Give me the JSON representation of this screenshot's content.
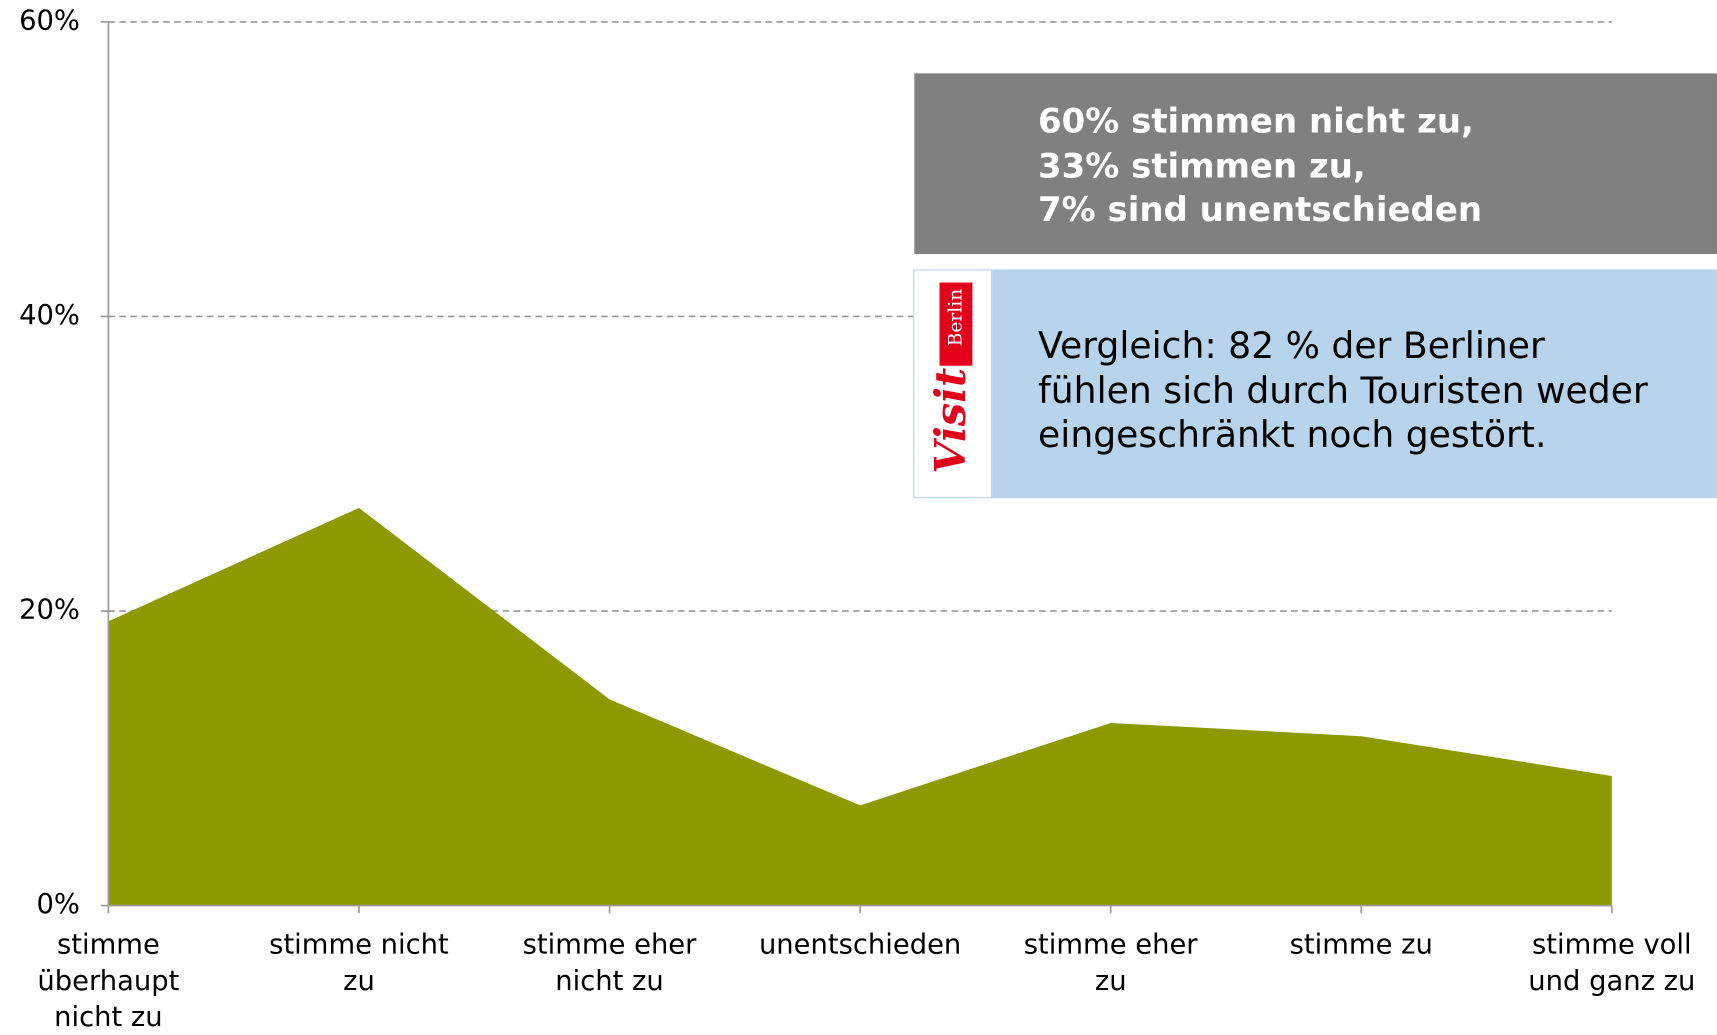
{
  "chart_data": {
    "type": "area",
    "categories": [
      "stimme überhaupt nicht zu",
      "stimme nicht zu",
      "stimme eher nicht zu",
      "unentschieden",
      "stimme eher zu",
      "stimme zu",
      "stimme voll und ganz zu"
    ],
    "values": [
      19.3,
      27,
      14,
      6.8,
      12.4,
      11.5,
      8.8
    ],
    "color": "#8c9a00",
    "ylim": [
      0,
      60
    ],
    "yticks": [
      {
        "value": 0,
        "label": "0%"
      },
      {
        "value": 20,
        "label": "20%"
      },
      {
        "value": 40,
        "label": "40%"
      },
      {
        "value": 60,
        "label": "60%"
      }
    ],
    "grid": true,
    "annotations": [
      {
        "lines": [
          "60% stimmen nicht zu,",
          "33% stimmen zu,",
          "7% sind unentschieden"
        ]
      },
      {
        "lines": [
          "Vergleich: 82 % der Berliner",
          "fühlen sich durch Touristen weder",
          "eingeschränkt noch gestört."
        ]
      }
    ],
    "logo": {
      "word": "Visit",
      "city": "Berlin"
    }
  }
}
